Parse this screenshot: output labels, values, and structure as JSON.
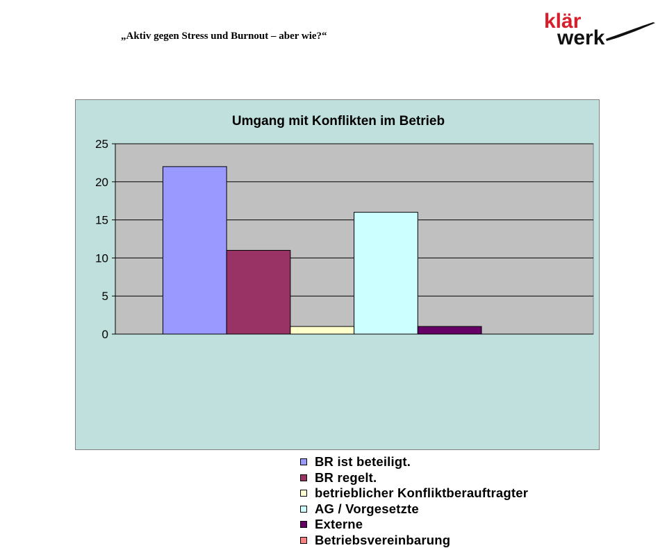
{
  "slide": {
    "title": "„Aktiv gegen Stress und Burnout – aber wie?“"
  },
  "logo": {
    "line1": "klär",
    "line2": "werk",
    "color": "#d81e2a"
  },
  "chart_data": {
    "type": "bar",
    "title": "Umgang mit Konflikten im Betrieb",
    "xlabel": "",
    "ylabel": "",
    "ylim": [
      0,
      25
    ],
    "yticks": [
      0,
      5,
      10,
      15,
      20,
      25
    ],
    "grid": true,
    "legend_position": "bottom",
    "plot_background": "#c0c0c0",
    "panel_background": "#bfe0dc",
    "series": [
      {
        "name": "BR ist beteiligt.",
        "value": 22,
        "color": "#9999ff"
      },
      {
        "name": "BR regelt.",
        "value": 11,
        "color": "#993366"
      },
      {
        "name": "betrieblicher Konfliktberauftragter",
        "value": 1,
        "color": "#ffffcc"
      },
      {
        "name": "AG / Vorgesetzte",
        "value": 16,
        "color": "#ccffff"
      },
      {
        "name": "Externe",
        "value": 1,
        "color": "#660066"
      },
      {
        "name": "Betriebsvereinbarung",
        "value": 0,
        "color": "#ff8080"
      }
    ]
  }
}
